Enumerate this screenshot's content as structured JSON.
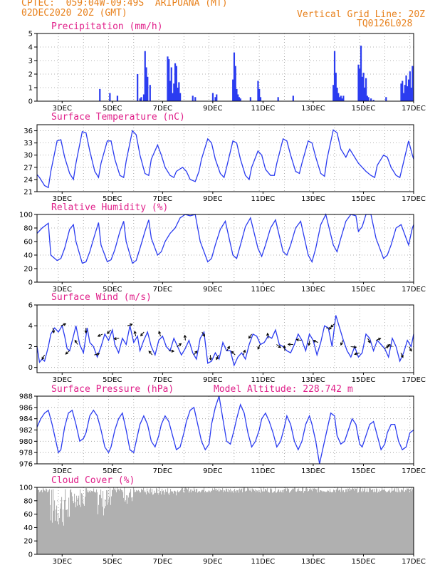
{
  "header": {
    "line1_left": "CPTEC:  059:04W-09:49S  ARIPUANA (MT)",
    "line2_left": "02DEC2020 20Z (GMT)",
    "line1_right": "Vertical Grid Line: 20Z",
    "line2_right": "TQ0126L028"
  },
  "colors": {
    "header": "#e8821e",
    "title": "#e0208a",
    "line": "#2b3cf0",
    "bar": "#2b3cf0",
    "cloud": "#b0b0b0"
  },
  "x_ticks": [
    "3DEC",
    "5DEC",
    "7DEC",
    "9DEC",
    "11DEC",
    "13DEC",
    "15DEC",
    "17DEC"
  ],
  "chart_data": [
    {
      "type": "bar",
      "title": "Precipitation (mm/h)",
      "ylim": [
        0,
        5
      ],
      "yticks": [
        0,
        1,
        2,
        3,
        4,
        5
      ],
      "x": [
        4.5,
        4.9,
        5.2,
        6.0,
        6.1,
        6.15,
        6.25,
        6.3,
        6.35,
        6.4,
        6.5,
        7.2,
        7.25,
        7.3,
        7.35,
        7.4,
        7.45,
        7.5,
        7.55,
        7.6,
        7.65,
        7.7,
        8.2,
        8.3,
        9.0,
        9.1,
        9.15,
        9.8,
        9.85,
        9.9,
        9.95,
        10.0,
        10.05,
        10.1,
        10.5,
        10.8,
        10.85,
        10.9,
        11.6,
        12.2,
        13.8,
        13.85,
        13.9,
        13.95,
        14.0,
        14.05,
        14.1,
        14.15,
        14.2,
        14.8,
        14.85,
        14.9,
        14.95,
        15.0,
        15.05,
        15.1,
        15.15,
        15.2,
        15.3,
        15.4,
        15.9,
        16.5,
        16.55,
        16.6,
        16.65,
        16.7,
        16.75,
        16.8,
        16.85,
        16.9,
        16.95
      ],
      "values": [
        0.9,
        0.6,
        0.4,
        2.0,
        0.2,
        0.3,
        0.5,
        3.7,
        2.5,
        1.8,
        1.2,
        3.3,
        3.1,
        1.5,
        2.5,
        0.6,
        1.3,
        2.8,
        2.6,
        1.0,
        1.4,
        0.6,
        0.4,
        0.3,
        0.6,
        0.3,
        0.5,
        1.6,
        3.6,
        2.6,
        0.9,
        0.5,
        0.3,
        0.2,
        0.3,
        1.5,
        0.9,
        0.3,
        0.3,
        0.4,
        1.2,
        3.7,
        2.1,
        1.0,
        0.6,
        0.3,
        0.4,
        0.2,
        0.4,
        2.7,
        2.4,
        4.1,
        1.8,
        2.1,
        1.0,
        1.7,
        0.4,
        0.3,
        0.2,
        0.1,
        0.3,
        1.3,
        1.5,
        0.6,
        1.2,
        1.9,
        1.1,
        1.6,
        2.2,
        1.0,
        2.6
      ]
    },
    {
      "type": "line",
      "title": "Surface Temperature (nC)",
      "ylim": [
        21,
        37.5
      ],
      "yticks": [
        21,
        24,
        27,
        30,
        33,
        36
      ],
      "x": [
        2.0,
        2.1,
        2.3,
        2.45,
        2.55,
        2.8,
        2.95,
        3.1,
        3.3,
        3.45,
        3.55,
        3.8,
        3.95,
        4.1,
        4.3,
        4.45,
        4.55,
        4.8,
        4.95,
        5.1,
        5.3,
        5.45,
        5.55,
        5.8,
        5.95,
        6.1,
        6.3,
        6.45,
        6.55,
        6.8,
        6.95,
        7.1,
        7.3,
        7.45,
        7.55,
        7.8,
        7.95,
        8.1,
        8.3,
        8.45,
        8.55,
        8.8,
        8.95,
        9.1,
        9.3,
        9.45,
        9.55,
        9.8,
        9.95,
        10.1,
        10.3,
        10.45,
        10.55,
        10.8,
        10.95,
        11.1,
        11.3,
        11.45,
        11.55,
        11.8,
        11.95,
        12.1,
        12.3,
        12.45,
        12.55,
        12.8,
        12.95,
        13.1,
        13.3,
        13.45,
        13.55,
        13.8,
        13.95,
        14.1,
        14.3,
        14.45,
        14.55,
        14.8,
        14.95,
        15.1,
        15.3,
        15.45,
        15.55,
        15.8,
        15.95,
        16.1,
        16.3,
        16.45,
        16.55,
        16.8,
        16.95,
        17.0
      ],
      "values": [
        25.2,
        24.5,
        22.5,
        22.0,
        26.0,
        33.5,
        33.8,
        29.5,
        25.5,
        24.0,
        28.0,
        35.8,
        35.5,
        31.0,
        26.0,
        24.5,
        28.0,
        33.5,
        33.5,
        29.0,
        25.0,
        24.5,
        28.5,
        36.0,
        35.0,
        30.0,
        25.5,
        25.0,
        29.0,
        32.5,
        30.0,
        27.0,
        25.0,
        24.5,
        26.0,
        27.0,
        26.0,
        24.0,
        23.5,
        26.0,
        29.0,
        34.0,
        33.0,
        29.0,
        25.5,
        24.5,
        27.0,
        33.5,
        33.0,
        29.0,
        25.0,
        24.0,
        27.0,
        31.0,
        30.0,
        26.5,
        25.0,
        25.0,
        28.0,
        34.0,
        33.5,
        30.0,
        26.0,
        25.5,
        28.0,
        33.5,
        33.0,
        29.5,
        25.5,
        24.8,
        29.0,
        36.2,
        35.5,
        31.5,
        29.5,
        31.5,
        30.5,
        28.0,
        27.0,
        26.0,
        25.0,
        24.5,
        27.5,
        30.0,
        29.5,
        27.0,
        25.0,
        24.5,
        27.0,
        33.5,
        30.0,
        29.0
      ]
    },
    {
      "type": "line",
      "title": "Relative Humidity (%)",
      "ylim": [
        0,
        100
      ],
      "yticks": [
        0,
        20,
        40,
        60,
        80,
        100
      ],
      "x": [
        2.0,
        2.2,
        2.45,
        2.55,
        2.8,
        2.95,
        3.1,
        3.3,
        3.45,
        3.55,
        3.8,
        3.95,
        4.1,
        4.3,
        4.45,
        4.55,
        4.8,
        4.95,
        5.1,
        5.3,
        5.45,
        5.55,
        5.8,
        5.95,
        6.1,
        6.3,
        6.45,
        6.55,
        6.8,
        6.95,
        7.1,
        7.3,
        7.5,
        7.7,
        7.9,
        8.1,
        8.3,
        8.5,
        8.8,
        8.95,
        9.1,
        9.3,
        9.5,
        9.8,
        9.95,
        10.1,
        10.3,
        10.5,
        10.8,
        10.95,
        11.1,
        11.3,
        11.5,
        11.8,
        11.95,
        12.1,
        12.3,
        12.5,
        12.8,
        12.95,
        13.1,
        13.3,
        13.5,
        13.8,
        13.95,
        14.1,
        14.3,
        14.5,
        14.7,
        14.8,
        14.95,
        15.1,
        15.3,
        15.5,
        15.8,
        15.95,
        16.1,
        16.3,
        16.5,
        16.8,
        16.95,
        17.0
      ],
      "values": [
        72,
        80,
        87,
        40,
        32,
        35,
        50,
        78,
        85,
        60,
        28,
        30,
        45,
        70,
        88,
        55,
        30,
        33,
        48,
        75,
        90,
        60,
        28,
        32,
        50,
        75,
        92,
        65,
        40,
        45,
        60,
        72,
        80,
        95,
        100,
        98,
        100,
        60,
        30,
        35,
        55,
        78,
        90,
        40,
        35,
        55,
        82,
        95,
        50,
        38,
        55,
        80,
        92,
        45,
        40,
        55,
        80,
        90,
        40,
        30,
        50,
        85,
        100,
        55,
        45,
        65,
        90,
        100,
        98,
        75,
        82,
        100,
        100,
        65,
        35,
        40,
        55,
        80,
        85,
        55,
        80,
        85
      ]
    },
    {
      "type": "line",
      "title": "Surface Wind (m/s)",
      "ylim": [
        -0.5,
        6
      ],
      "yticks": [
        0,
        2,
        4,
        6
      ],
      "x": [
        2.0,
        2.1,
        2.2,
        2.3,
        2.45,
        2.55,
        2.7,
        2.85,
        3.0,
        3.1,
        3.2,
        3.3,
        3.45,
        3.55,
        3.7,
        3.85,
        4.0,
        4.1,
        4.25,
        4.4,
        4.55,
        4.7,
        4.85,
        5.0,
        5.1,
        5.25,
        5.4,
        5.55,
        5.7,
        5.85,
        6.0,
        6.1,
        6.25,
        6.4,
        6.55,
        6.7,
        6.85,
        7.0,
        7.15,
        7.3,
        7.45,
        7.6,
        7.75,
        7.9,
        8.05,
        8.2,
        8.35,
        8.5,
        8.65,
        8.8,
        8.95,
        9.1,
        9.25,
        9.4,
        9.55,
        9.7,
        9.85,
        10.0,
        10.15,
        10.3,
        10.45,
        10.6,
        10.75,
        10.9,
        11.05,
        11.2,
        11.35,
        11.5,
        11.65,
        11.8,
        11.95,
        12.1,
        12.25,
        12.4,
        12.55,
        12.7,
        12.85,
        13.0,
        13.15,
        13.3,
        13.45,
        13.6,
        13.75,
        13.9,
        14.05,
        14.2,
        14.35,
        14.5,
        14.65,
        14.8,
        14.95,
        15.1,
        15.25,
        15.4,
        15.55,
        15.7,
        15.85,
        16.0,
        16.15,
        16.3,
        16.45,
        16.6,
        16.75,
        16.9,
        17.0
      ],
      "values": [
        2.0,
        0.5,
        0.8,
        0.6,
        2.0,
        3.2,
        3.8,
        3.4,
        4.0,
        3.0,
        1.8,
        1.6,
        3.0,
        4.0,
        2.2,
        1.4,
        3.8,
        2.4,
        2.0,
        1.0,
        2.0,
        3.2,
        2.6,
        3.6,
        2.2,
        1.4,
        2.8,
        2.2,
        4.0,
        2.4,
        3.0,
        1.6,
        2.6,
        3.4,
        2.0,
        1.2,
        2.6,
        3.0,
        2.0,
        1.6,
        2.8,
        2.0,
        1.2,
        1.8,
        2.6,
        1.4,
        0.8,
        2.8,
        3.4,
        0.4,
        0.6,
        1.4,
        0.8,
        2.4,
        1.6,
        1.6,
        0.2,
        1.0,
        1.4,
        0.8,
        2.2,
        3.2,
        3.0,
        2.2,
        2.4,
        3.0,
        2.8,
        3.6,
        2.2,
        2.0,
        1.6,
        1.4,
        2.2,
        3.2,
        2.6,
        1.6,
        3.2,
        2.6,
        1.2,
        2.4,
        4.0,
        3.8,
        2.0,
        5.0,
        3.8,
        2.6,
        1.6,
        1.0,
        2.0,
        1.0,
        1.4,
        3.2,
        2.8,
        1.6,
        2.6,
        2.2,
        1.8,
        1.0,
        2.8,
        2.0,
        0.6,
        1.4,
        2.6,
        2.0,
        3.2
      ]
    },
    {
      "type": "line",
      "title": "Surface Pressure (hPa)",
      "annotation": "Model Altitude: 228.742 m",
      "ylim": [
        976,
        988
      ],
      "yticks": [
        976,
        978,
        980,
        982,
        984,
        986,
        988
      ],
      "x": [
        2.0,
        2.15,
        2.3,
        2.45,
        2.6,
        2.75,
        2.85,
        2.95,
        3.1,
        3.25,
        3.4,
        3.55,
        3.7,
        3.85,
        3.95,
        4.1,
        4.25,
        4.4,
        4.55,
        4.7,
        4.85,
        4.95,
        5.1,
        5.25,
        5.4,
        5.55,
        5.7,
        5.85,
        5.95,
        6.1,
        6.25,
        6.4,
        6.55,
        6.7,
        6.85,
        6.95,
        7.1,
        7.25,
        7.4,
        7.55,
        7.7,
        7.85,
        7.95,
        8.1,
        8.25,
        8.4,
        8.55,
        8.7,
        8.85,
        8.95,
        9.1,
        9.25,
        9.4,
        9.55,
        9.7,
        9.85,
        9.95,
        10.1,
        10.25,
        10.4,
        10.55,
        10.7,
        10.85,
        10.95,
        11.1,
        11.25,
        11.4,
        11.55,
        11.7,
        11.85,
        11.95,
        12.1,
        12.25,
        12.4,
        12.55,
        12.7,
        12.85,
        12.95,
        13.1,
        13.25,
        13.4,
        13.55,
        13.7,
        13.85,
        13.95,
        14.1,
        14.25,
        14.4,
        14.55,
        14.7,
        14.85,
        14.95,
        15.1,
        15.25,
        15.4,
        15.55,
        15.7,
        15.85,
        15.95,
        16.1,
        16.25,
        16.4,
        16.55,
        16.7,
        16.85,
        17.0
      ],
      "values": [
        982.5,
        984.0,
        985.0,
        985.5,
        983.0,
        980.0,
        978.0,
        978.5,
        982.5,
        985.0,
        985.5,
        983.0,
        980.0,
        980.5,
        981.5,
        984.5,
        985.5,
        984.5,
        982.0,
        979.0,
        978.0,
        979.0,
        982.0,
        984.0,
        985.0,
        982.0,
        978.5,
        978.0,
        980.0,
        983.0,
        984.5,
        983.0,
        980.0,
        979.0,
        981.0,
        983.0,
        984.5,
        983.5,
        981.0,
        978.5,
        979.0,
        981.5,
        983.5,
        985.5,
        986.0,
        983.0,
        980.0,
        978.5,
        979.5,
        983.0,
        986.0,
        988.0,
        984.0,
        980.0,
        979.5,
        982.0,
        984.0,
        986.5,
        985.0,
        981.5,
        979.0,
        980.0,
        982.0,
        984.0,
        985.0,
        983.5,
        981.5,
        979.0,
        980.0,
        982.5,
        984.5,
        983.0,
        980.0,
        978.5,
        980.0,
        983.0,
        984.5,
        983.0,
        980.0,
        976.0,
        979.0,
        982.0,
        985.0,
        984.5,
        981.0,
        979.5,
        980.0,
        982.0,
        984.0,
        983.0,
        979.5,
        979.0,
        981.0,
        983.0,
        983.5,
        981.0,
        978.5,
        979.5,
        981.5,
        983.0,
        983.0,
        980.0,
        978.5,
        979.0,
        981.5,
        982.0
      ]
    },
    {
      "type": "bar",
      "title": "Cloud Cover (%)",
      "ylim": [
        0,
        100
      ],
      "yticks": [
        0,
        20,
        40,
        60,
        80,
        100
      ]
    }
  ]
}
